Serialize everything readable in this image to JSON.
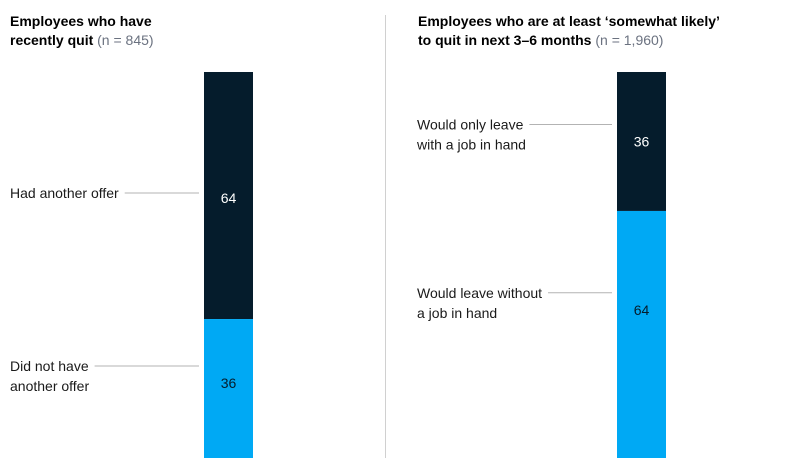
{
  "colors": {
    "dark": "#051c2c",
    "light": "#00a9f4"
  },
  "chart_data": [
    {
      "type": "bar",
      "stacked": true,
      "title": "Employees who have recently quit",
      "n_note": "(n = 845)",
      "categories": [
        "Employees who have recently quit"
      ],
      "series": [
        {
          "name": "Had another offer",
          "values": [
            64
          ],
          "color": "#051c2c"
        },
        {
          "name": "Did not have another offer",
          "values": [
            36
          ],
          "color": "#00a9f4"
        }
      ],
      "ylim": [
        0,
        100
      ]
    },
    {
      "type": "bar",
      "stacked": true,
      "title": "Employees who are at least ‘somewhat likely’ to quit in next 3–6 months",
      "n_note": "(n = 1,960)",
      "categories": [
        "Employees who are at least ‘somewhat likely’ to quit in next 3–6 months"
      ],
      "series": [
        {
          "name": "Would only leave with a job in hand",
          "values": [
            36
          ],
          "color": "#051c2c"
        },
        {
          "name": "Would leave without a job in hand",
          "values": [
            64
          ],
          "color": "#00a9f4"
        }
      ],
      "ylim": [
        0,
        100
      ]
    }
  ],
  "left": {
    "title_line1": "Employees who have",
    "title_line2": "recently quit",
    "n_note": "(n = 845)",
    "top_label": [
      "Had another offer"
    ],
    "bottom_label": [
      "Did not have",
      "another offer"
    ]
  },
  "right": {
    "title_line1": "Employees who are at least ‘somewhat likely’",
    "title_line2": "to quit in next 3–6 months",
    "n_note": "(n = 1,960)",
    "top_label": [
      "Would only leave",
      "with a job in hand"
    ],
    "bottom_label": [
      "Would leave without",
      "a job in hand"
    ]
  }
}
